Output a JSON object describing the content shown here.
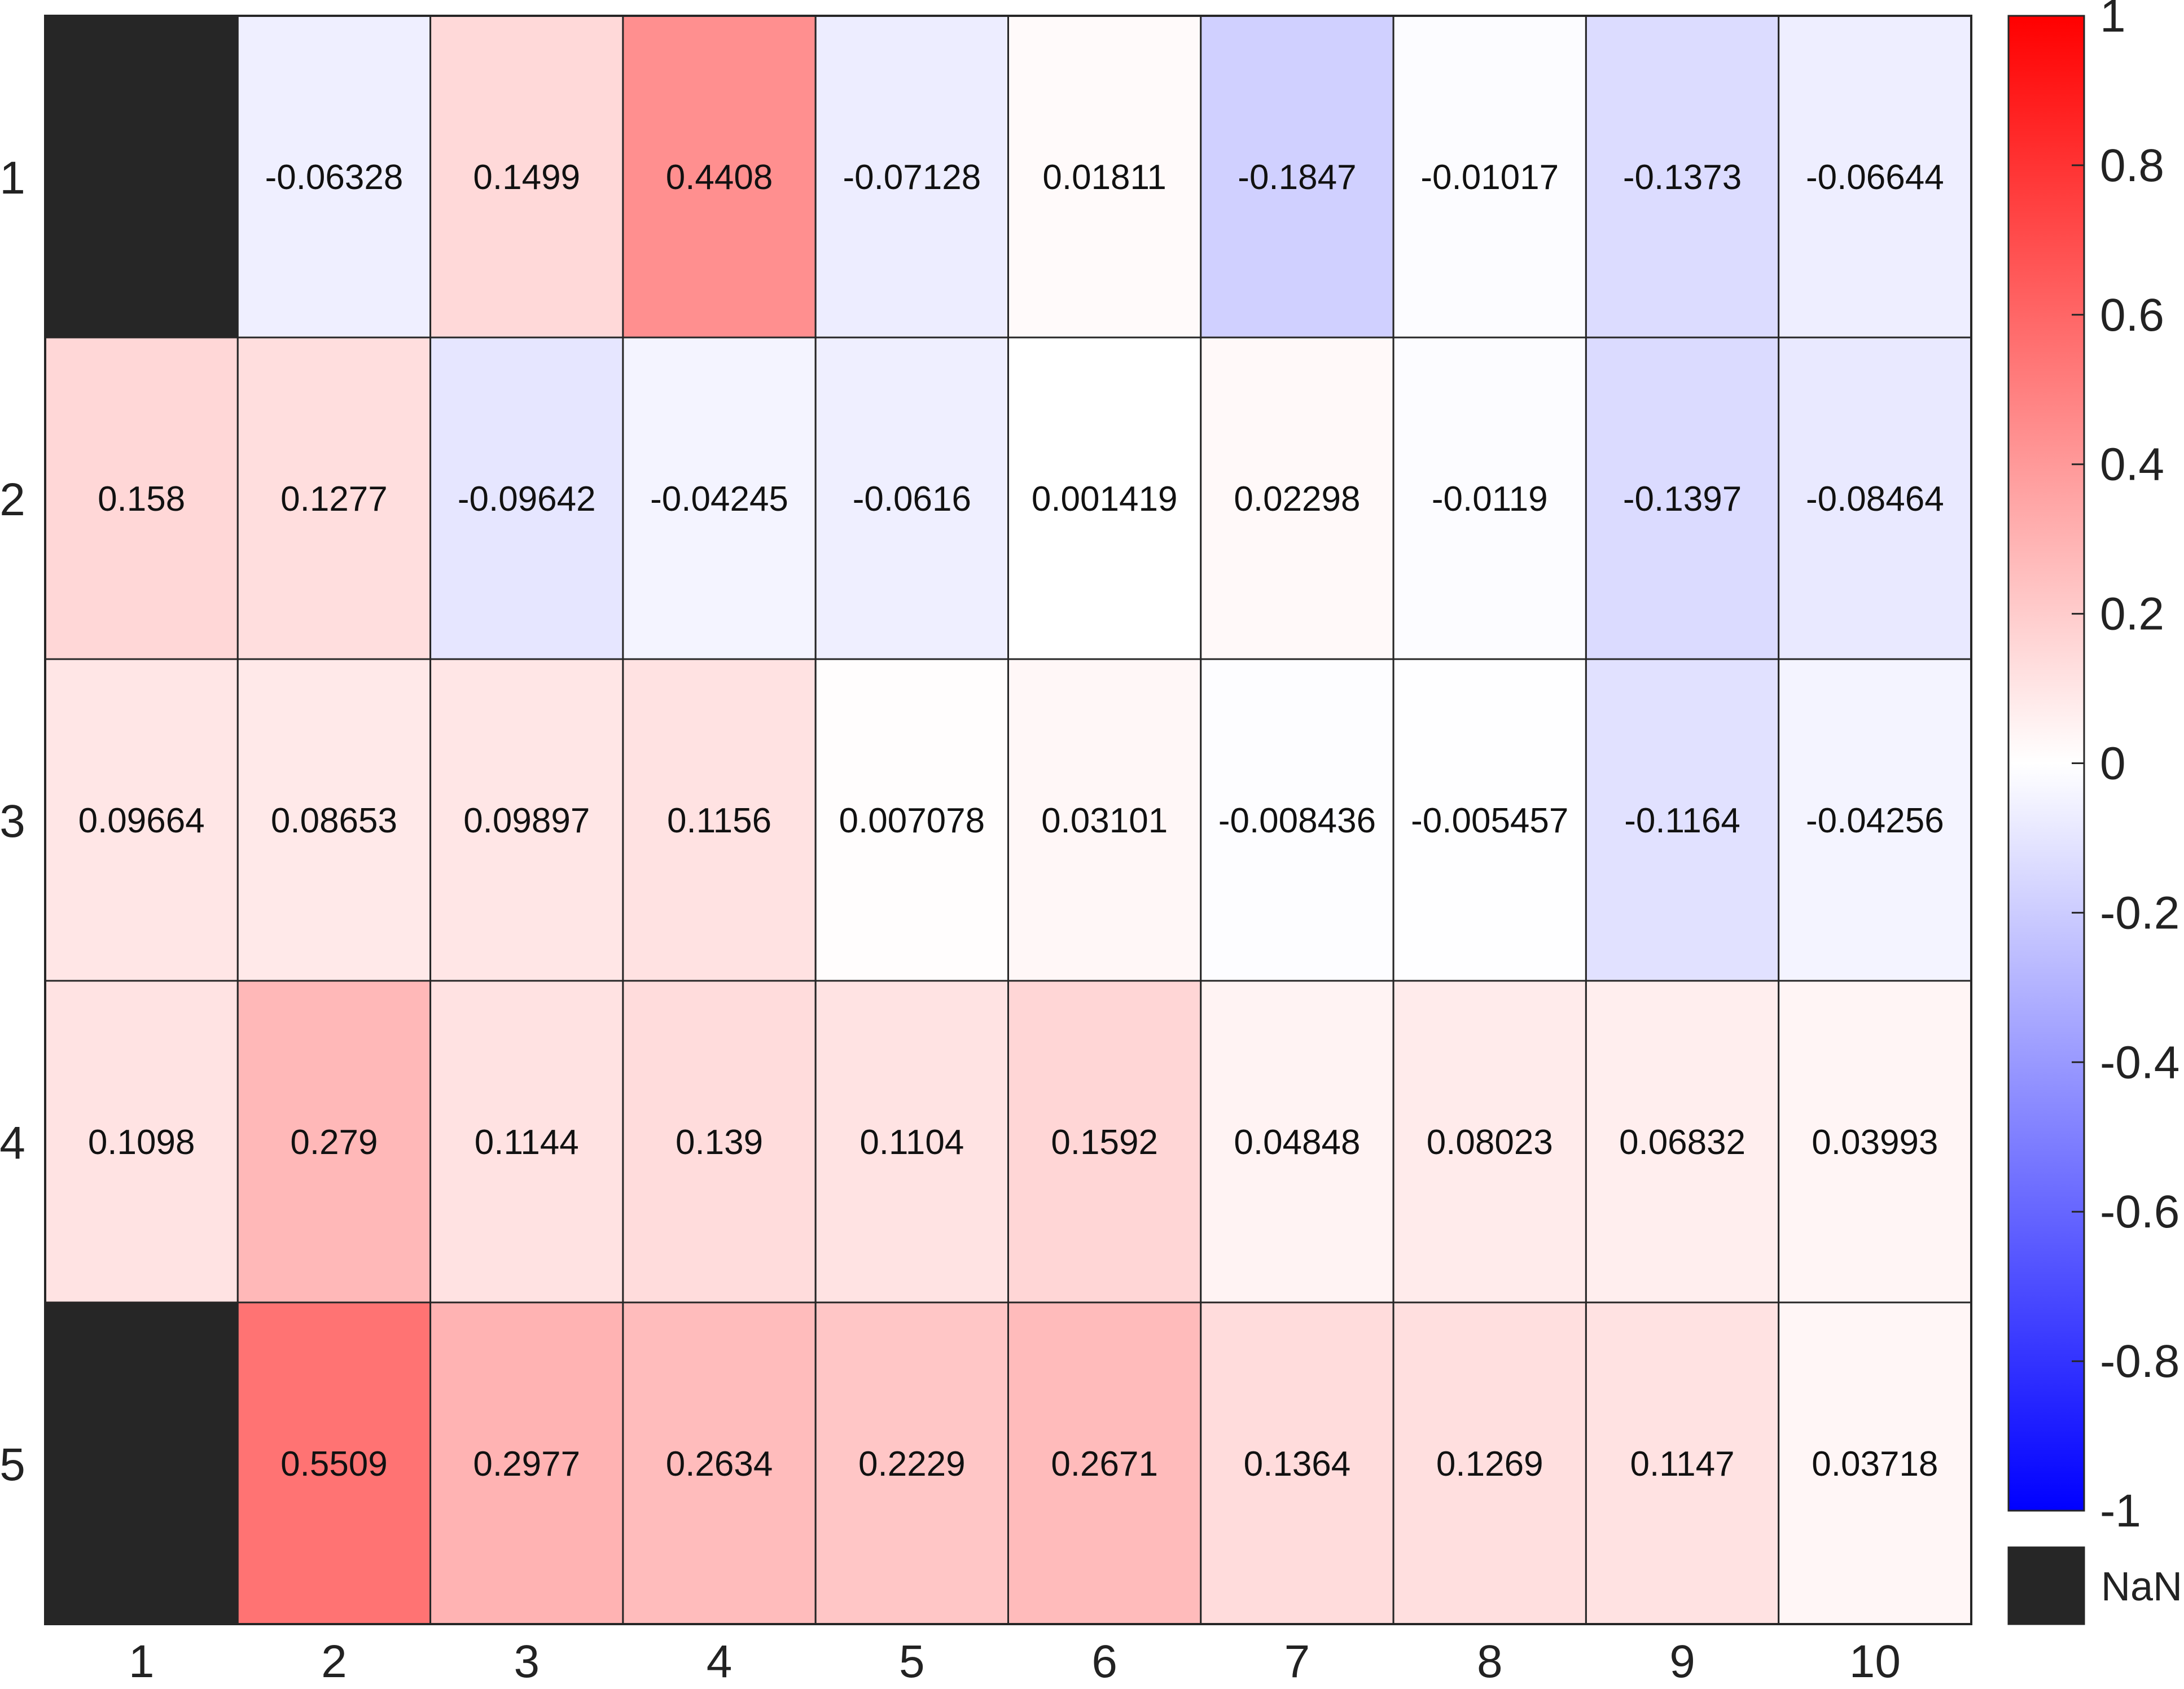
{
  "chart_data": {
    "type": "heatmap",
    "x_labels": [
      "1",
      "2",
      "3",
      "4",
      "5",
      "6",
      "7",
      "8",
      "9",
      "10"
    ],
    "y_labels": [
      "1",
      "2",
      "3",
      "4",
      "5"
    ],
    "values": [
      [
        null,
        -0.06328,
        0.1499,
        0.4408,
        -0.07128,
        0.01811,
        -0.1847,
        -0.01017,
        -0.1373,
        -0.06644
      ],
      [
        0.158,
        0.1277,
        -0.09642,
        -0.04245,
        -0.0616,
        0.001419,
        0.02298,
        -0.0119,
        -0.1397,
        -0.08464
      ],
      [
        0.09664,
        0.08653,
        0.09897,
        0.1156,
        0.007078,
        0.03101,
        -0.008436,
        -0.005457,
        -0.1164,
        -0.04256
      ],
      [
        0.1098,
        0.279,
        0.1144,
        0.139,
        0.1104,
        0.1592,
        0.04848,
        0.08023,
        0.06832,
        0.03993
      ],
      [
        null,
        0.5509,
        0.2977,
        0.2634,
        0.2229,
        0.2671,
        0.1364,
        0.1269,
        0.1147,
        0.03718
      ]
    ],
    "cell_labels": [
      [
        "",
        "-0.06328",
        "0.1499",
        "0.4408",
        "-0.07128",
        "0.01811",
        "-0.1847",
        "-0.01017",
        "-0.1373",
        "-0.06644"
      ],
      [
        "0.158",
        "0.1277",
        "-0.09642",
        "-0.04245",
        "-0.0616",
        "0.001419",
        "0.02298",
        "-0.0119",
        "-0.1397",
        "-0.08464"
      ],
      [
        "0.09664",
        "0.08653",
        "0.09897",
        "0.1156",
        "0.007078",
        "0.03101",
        "-0.008436",
        "-0.005457",
        "-0.1164",
        "-0.04256"
      ],
      [
        "0.1098",
        "0.279",
        "0.1144",
        "0.139",
        "0.1104",
        "0.1592",
        "0.04848",
        "0.08023",
        "0.06832",
        "0.03993"
      ],
      [
        "",
        "0.5509",
        "0.2977",
        "0.2634",
        "0.2229",
        "0.2671",
        "0.1364",
        "0.1269",
        "0.1147",
        "0.03718"
      ]
    ],
    "colorbar": {
      "min": -1,
      "max": 1,
      "ticks": [
        "1",
        "0.8",
        "0.6",
        "0.4",
        "0.2",
        "0",
        "-0.2",
        "-0.4",
        "-0.6",
        "-0.8",
        "-1"
      ],
      "low_color": "#0000ff",
      "mid_color": "#ffffff",
      "high_color": "#ff0000"
    },
    "nan": {
      "label": "NaN",
      "color": "#262626"
    },
    "grid_color": "#262626"
  }
}
